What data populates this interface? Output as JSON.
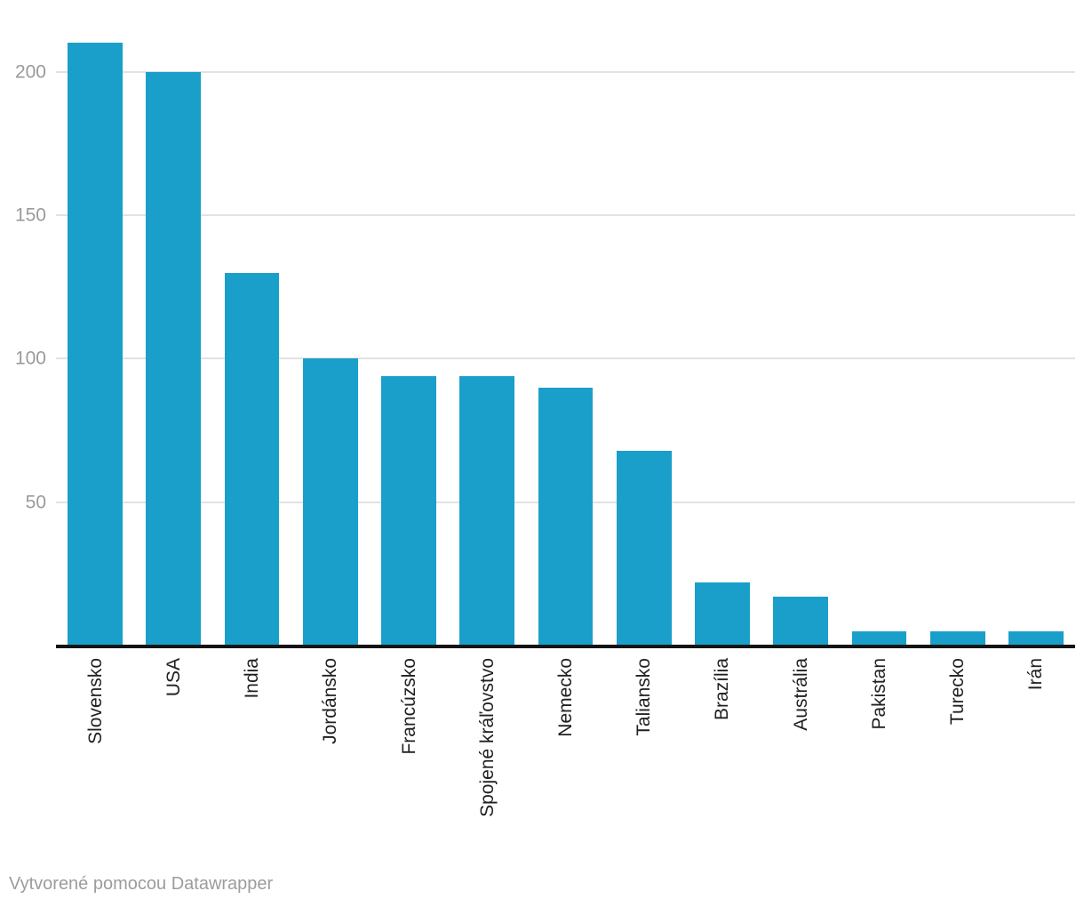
{
  "chart_data": {
    "type": "bar",
    "title": "",
    "xlabel": "",
    "ylabel": "",
    "categories": [
      "Slovensko",
      "USA",
      "India",
      "Jordánsko",
      "Francúzsko",
      "Spojené kráľovstvo",
      "Nemecko",
      "Taliansko",
      "Brazília",
      "Austrália",
      "Pakistan",
      "Turecko",
      "Irán"
    ],
    "values": [
      210,
      200,
      130,
      100,
      94,
      94,
      90,
      68,
      22,
      17,
      5,
      5,
      5
    ],
    "ylim": [
      0,
      225
    ],
    "y_ticks": [
      50,
      100,
      150,
      200
    ],
    "grid": "horizontal",
    "legend": "none",
    "bar_color": "#1a9fca",
    "gridline_color": "#e2e2e2",
    "axis_line_color": "#141414",
    "y_tick_label_color": "#9a9a9a",
    "category_label_color": "#202022"
  },
  "footer": {
    "prefix": "Vytvorené pomocou ",
    "link_label": "Datawrapper",
    "color": "#9c9c9c"
  }
}
